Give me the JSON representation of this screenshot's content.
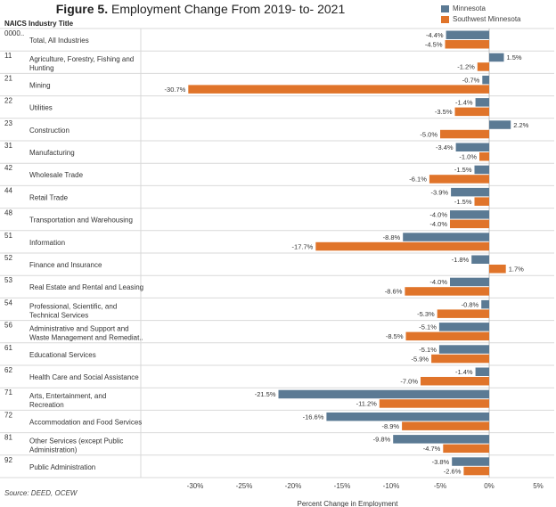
{
  "title_prefix": "Figure 5.",
  "title_rest": " Employment Change From 2019- to- 2021",
  "header": {
    "naics": "NAICS",
    "industry": "Industry Title"
  },
  "source": "Source: DEED, OCEW",
  "colors": {
    "Minnesota": "#5b7a94",
    "Southwest Minnesota": "#e0742a"
  },
  "chart_data": {
    "type": "bar",
    "orientation": "horizontal",
    "xlabel": "Percent Change in Employment",
    "xlim": [
      -33,
      5
    ],
    "xticks": [
      -30,
      -25,
      -20,
      -15,
      -10,
      -5,
      0,
      5
    ],
    "xtick_labels": [
      "-30%",
      "-25%",
      "-20%",
      "-15%",
      "-10%",
      "-5%",
      "0%",
      "5%"
    ],
    "legend_position": "top-right",
    "series_names": [
      "Minnesota",
      "Southwest Minnesota"
    ],
    "categories": [
      {
        "naics": "0000..",
        "title": [
          "Total, All Industries"
        ],
        "mn": -4.4,
        "sw": -4.5
      },
      {
        "naics": "11",
        "title": [
          "Agriculture, Forestry, Fishing and",
          "Hunting"
        ],
        "mn": 1.5,
        "sw": -1.2
      },
      {
        "naics": "21",
        "title": [
          "Mining"
        ],
        "mn": -0.7,
        "sw": -30.7
      },
      {
        "naics": "22",
        "title": [
          "Utilities"
        ],
        "mn": -1.4,
        "sw": -3.5
      },
      {
        "naics": "23",
        "title": [
          "Construction"
        ],
        "mn": 2.2,
        "sw": -5.0
      },
      {
        "naics": "31",
        "title": [
          "Manufacturing"
        ],
        "mn": -3.4,
        "sw": -1.0
      },
      {
        "naics": "42",
        "title": [
          "Wholesale Trade"
        ],
        "mn": -1.5,
        "sw": -6.1
      },
      {
        "naics": "44",
        "title": [
          "Retail Trade"
        ],
        "mn": -3.9,
        "sw": -1.5
      },
      {
        "naics": "48",
        "title": [
          "Transportation and Warehousing"
        ],
        "mn": -4.0,
        "sw": -4.0
      },
      {
        "naics": "51",
        "title": [
          "Information"
        ],
        "mn": -8.8,
        "sw": -17.7
      },
      {
        "naics": "52",
        "title": [
          "Finance and Insurance"
        ],
        "mn": -1.8,
        "sw": 1.7
      },
      {
        "naics": "53",
        "title": [
          "Real Estate and Rental and Leasing"
        ],
        "mn": -4.0,
        "sw": -8.6
      },
      {
        "naics": "54",
        "title": [
          "Professional, Scientific, and",
          "Technical Services"
        ],
        "mn": -0.8,
        "sw": -5.3
      },
      {
        "naics": "56",
        "title": [
          "Administrative and Support and",
          "Waste Management and Remediat.."
        ],
        "mn": -5.1,
        "sw": -8.5
      },
      {
        "naics": "61",
        "title": [
          "Educational Services"
        ],
        "mn": -5.1,
        "sw": -5.9
      },
      {
        "naics": "62",
        "title": [
          "Health Care and Social Assistance"
        ],
        "mn": -1.4,
        "sw": -7.0
      },
      {
        "naics": "71",
        "title": [
          "Arts, Entertainment, and",
          "Recreation"
        ],
        "mn": -21.5,
        "sw": -11.2
      },
      {
        "naics": "72",
        "title": [
          "Accommodation and Food Services"
        ],
        "mn": -16.6,
        "sw": -8.9
      },
      {
        "naics": "81",
        "title": [
          "Other Services (except Public",
          "Administration)"
        ],
        "mn": -9.8,
        "sw": -4.7
      },
      {
        "naics": "92",
        "title": [
          "Public Administration"
        ],
        "mn": -3.8,
        "sw": -2.6
      }
    ]
  }
}
